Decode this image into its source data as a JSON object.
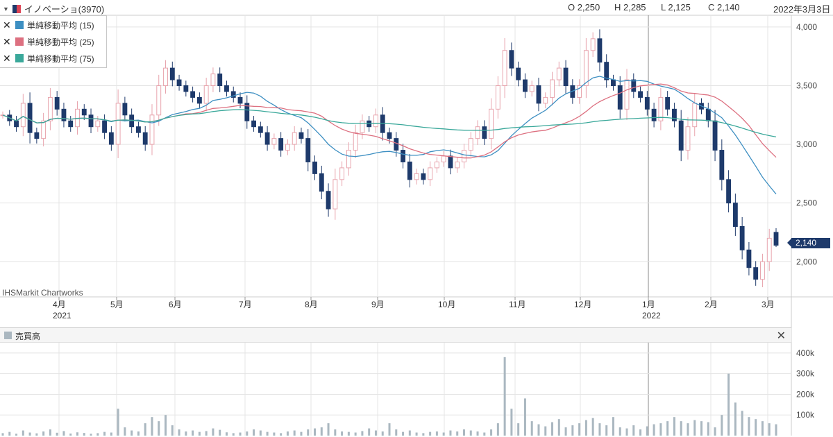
{
  "header": {
    "title": "イノベーショ(3970)",
    "open": "O 2,250",
    "high": "H 2,285",
    "low": "L 2,125",
    "close": "C 2,140",
    "date": "2022年3月3日",
    "last_price_tag": "2,140"
  },
  "legend": [
    {
      "name": "単純移動平均 (15)",
      "color": "#3d8fc2"
    },
    {
      "name": "単純移動平均 (25)",
      "color": "#dd7080"
    },
    {
      "name": "単純移動平均 (75)",
      "color": "#3aa89a"
    }
  ],
  "watermark": "IHSMarkit Chartworks",
  "volume_panel": {
    "label": "売買高",
    "close_icon": "close-icon"
  },
  "colors": {
    "up": "#e8a4ad",
    "down": "#1e3a6b",
    "ma15": "#3d8fc2",
    "ma25": "#dd7080",
    "ma75": "#3aa89a",
    "volume": "#aab7c0",
    "grid": "#e4e4e4"
  },
  "chart_data": {
    "type": "candlestick",
    "price_axis": {
      "ticks": [
        "2,000",
        "2,500",
        "3,000",
        "3,500",
        "4,000"
      ],
      "range": [
        1700,
        4100
      ]
    },
    "volume_axis": {
      "ticks": [
        "100k",
        "200k",
        "300k",
        "400k"
      ],
      "range": [
        0,
        450000
      ]
    },
    "x_labels": [
      {
        "label": "4月",
        "sub": "2021",
        "date": "2021-04-01"
      },
      {
        "label": "5月",
        "sub": "",
        "date": "2021-05-01"
      },
      {
        "label": "6月",
        "sub": "",
        "date": "2021-06-01"
      },
      {
        "label": "7月",
        "sub": "",
        "date": "2021-07-01"
      },
      {
        "label": "8月",
        "sub": "",
        "date": "2021-08-01"
      },
      {
        "label": "9月",
        "sub": "",
        "date": "2021-09-01"
      },
      {
        "label": "10月",
        "sub": "",
        "date": "2021-10-01"
      },
      {
        "label": "11月",
        "sub": "",
        "date": "2021-11-01"
      },
      {
        "label": "12月",
        "sub": "",
        "date": "2021-12-01"
      },
      {
        "label": "1月",
        "sub": "2022",
        "date": "2022-01-01"
      },
      {
        "label": "2月",
        "sub": "",
        "date": "2022-02-01"
      },
      {
        "label": "3月",
        "sub": "",
        "date": "2022-03-01"
      }
    ],
    "close_series": [
      3250,
      3200,
      3150,
      3350,
      3100,
      3050,
      3200,
      3400,
      3300,
      3200,
      3150,
      3300,
      3250,
      3150,
      3200,
      3100,
      3000,
      3350,
      3250,
      3150,
      3100,
      3000,
      3250,
      3500,
      3650,
      3550,
      3500,
      3450,
      3400,
      3350,
      3500,
      3600,
      3500,
      3450,
      3400,
      3350,
      3200,
      3150,
      3100,
      3000,
      3050,
      2950,
      3000,
      3100,
      3050,
      2850,
      2750,
      2600,
      2450,
      2700,
      2800,
      2950,
      3100,
      3200,
      3150,
      3250,
      3100,
      3050,
      2950,
      2850,
      2700,
      2750,
      2700,
      2800,
      2850,
      2900,
      2800,
      2850,
      2950,
      3050,
      3150,
      3050,
      3300,
      3500,
      3800,
      3650,
      3550,
      3450,
      3500,
      3350,
      3400,
      3550,
      3650,
      3500,
      3400,
      3500,
      3800,
      3900,
      3700,
      3550,
      3500,
      3300,
      3550,
      3450,
      3400,
      3300,
      3200,
      3400,
      3300,
      3200,
      2950,
      3150,
      3350,
      3300,
      3200,
      2950,
      2700,
      2500,
      2300,
      2100,
      1950,
      1850,
      2000,
      2200,
      2140
    ],
    "ohlc_last": {
      "open": 2250,
      "high": 2285,
      "low": 2125,
      "close": 2140
    },
    "volume_series": [
      12000,
      18000,
      9000,
      25000,
      15000,
      11000,
      20000,
      30000,
      14000,
      22000,
      10000,
      16000,
      13000,
      9000,
      12000,
      18000,
      15000,
      130000,
      40000,
      25000,
      20000,
      60000,
      90000,
      70000,
      100000,
      50000,
      30000,
      20000,
      25000,
      18000,
      22000,
      35000,
      28000,
      16000,
      12000,
      15000,
      20000,
      30000,
      25000,
      18000,
      15000,
      12000,
      20000,
      25000,
      18000,
      30000,
      35000,
      40000,
      60000,
      30000,
      20000,
      18000,
      15000,
      22000,
      35000,
      25000,
      20000,
      60000,
      30000,
      18000,
      25000,
      15000,
      12000,
      18000,
      20000,
      15000,
      25000,
      20000,
      30000,
      25000,
      20000,
      15000,
      30000,
      60000,
      380000,
      130000,
      60000,
      180000,
      70000,
      55000,
      45000,
      65000,
      80000,
      40000,
      50000,
      60000,
      75000,
      85000,
      60000,
      50000,
      90000,
      40000,
      35000,
      50000,
      30000,
      45000,
      55000,
      60000,
      70000,
      90000,
      70000,
      60000,
      75000,
      70000,
      65000,
      40000,
      100000,
      300000,
      160000,
      120000,
      90000,
      80000,
      70000,
      60000,
      55000
    ]
  }
}
